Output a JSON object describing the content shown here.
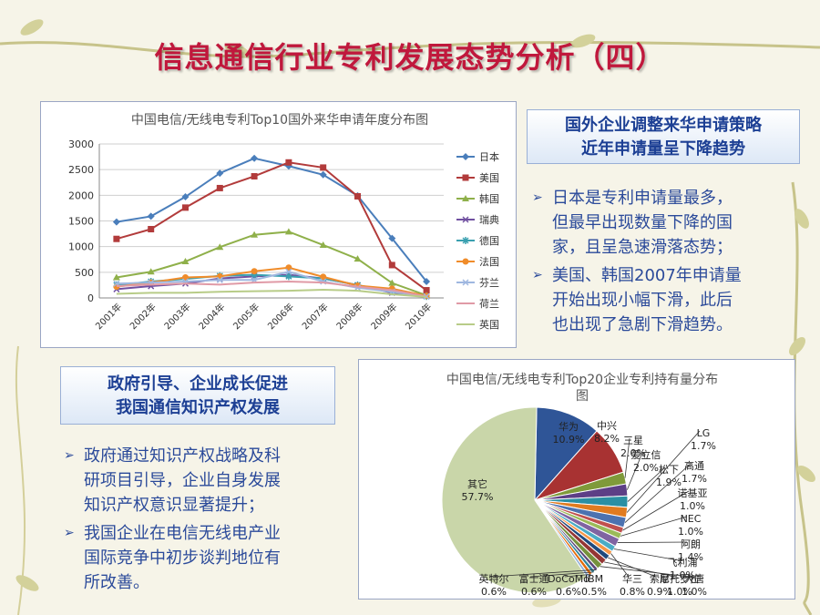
{
  "slide": {
    "title": "信息通信行业专利发展态势分析（四）"
  },
  "line_chart": {
    "title": "中国电信/无线电专利Top10国外来华申请年度分布图",
    "y_ticks": [
      "3000",
      "2500",
      "2000",
      "1500",
      "1000",
      "500",
      "0"
    ]
  },
  "pie_chart": {
    "title_line1": "中国电信/无线电专利Top20企业专利持有量分布",
    "title_line2": "图"
  },
  "right_box": {
    "line1": "国外企业调整来华申请策略",
    "line2": "近年申请量呈下降趋势",
    "bullets": [
      [
        "日本是专利申请量最多，",
        "但最早出现数量下降的国",
        "家，且呈急速滑落态势；"
      ],
      [
        "美国、韩国2007年申请量",
        "开始出现小幅下滑，此后",
        "也出现了急剧下滑趋势。"
      ]
    ]
  },
  "left_box": {
    "line1": "政府引导、企业成长促进",
    "line2": "我国通信知识产权发展",
    "bullets": [
      [
        "政府通过知识产权战略及科",
        "研项目引导，企业自身发展",
        "知识产权意识显著提升；"
      ],
      [
        "我国企业在电信无线电产业",
        "国际竞争中初步谈判地位有",
        "所改善。"
      ]
    ]
  },
  "chart_data": [
    {
      "type": "line",
      "title": "中国电信/无线电专利Top10国外来华申请年度分布图",
      "x": [
        "2001年",
        "2002年",
        "2003年",
        "2004年",
        "2005年",
        "2006年",
        "2007年",
        "2008年",
        "2009年",
        "2010年"
      ],
      "ylim": [
        0,
        3000
      ],
      "grid": true,
      "legend": "right",
      "series": [
        {
          "name": "日本",
          "color": "#4a7ebb",
          "marker": "diamond",
          "values": [
            1480,
            1590,
            1970,
            2430,
            2720,
            2570,
            2400,
            1990,
            1160,
            320
          ]
        },
        {
          "name": "美国",
          "color": "#b23b3b",
          "marker": "square",
          "values": [
            1150,
            1340,
            1760,
            2140,
            2370,
            2640,
            2540,
            1980,
            640,
            150
          ]
        },
        {
          "name": "韩国",
          "color": "#8fb04a",
          "marker": "triangle",
          "values": [
            400,
            510,
            710,
            990,
            1230,
            1290,
            1030,
            760,
            290,
            50
          ]
        },
        {
          "name": "瑞典",
          "color": "#7050a0",
          "marker": "x",
          "values": [
            170,
            230,
            280,
            380,
            420,
            450,
            380,
            250,
            100,
            30
          ]
        },
        {
          "name": "德国",
          "color": "#3aa0b0",
          "marker": "star",
          "values": [
            250,
            320,
            370,
            430,
            450,
            420,
            380,
            250,
            120,
            30
          ]
        },
        {
          "name": "法国",
          "color": "#f08c2a",
          "marker": "circle",
          "values": [
            220,
            300,
            400,
            420,
            520,
            590,
            410,
            240,
            180,
            40
          ]
        },
        {
          "name": "芬兰",
          "color": "#9fb7e0",
          "marker": "x",
          "values": [
            280,
            300,
            320,
            350,
            350,
            510,
            320,
            200,
            120,
            30
          ]
        },
        {
          "name": "荷兰",
          "color": "#e09aa6",
          "marker": "none",
          "values": [
            230,
            260,
            280,
            260,
            300,
            320,
            300,
            220,
            150,
            30
          ]
        },
        {
          "name": "英国",
          "color": "#b8cc88",
          "marker": "none",
          "values": [
            80,
            100,
            100,
            120,
            130,
            140,
            160,
            140,
            70,
            20
          ]
        }
      ]
    },
    {
      "type": "pie",
      "title": "中国电信/无线电专利Top20企业专利持有量分布图",
      "slices": [
        {
          "label": "华为",
          "value": 10.9,
          "display": "10.9%",
          "color": "#2f5597"
        },
        {
          "label": "中兴",
          "value": 8.2,
          "display": "8.2%",
          "color": "#a83232"
        },
        {
          "label": "三星",
          "value": 2.0,
          "display": "2.0%",
          "color": "#7f9a3a"
        },
        {
          "label": "爱立信",
          "value": 2.0,
          "display": "2.0%",
          "color": "#5d3f86"
        },
        {
          "label": "松下",
          "value": 1.9,
          "display": "1.9%",
          "color": "#2b8fa3"
        },
        {
          "label": "LG",
          "value": 1.7,
          "display": "1.7%",
          "color": "#e07b20"
        },
        {
          "label": "高通",
          "value": 1.7,
          "display": "1.7%",
          "color": "#4c72b0"
        },
        {
          "label": "诺基亚",
          "value": 1.0,
          "display": "1.0%",
          "color": "#c0504d"
        },
        {
          "label": "NEC",
          "value": 1.0,
          "display": "1.0%",
          "color": "#9bbb59"
        },
        {
          "label": "阿朗",
          "value": 1.4,
          "display": "1.4%",
          "color": "#8064a2"
        },
        {
          "label": "飞利浦",
          "value": 1.0,
          "display": "1.0%",
          "color": "#4bacc6"
        },
        {
          "label": "华三",
          "value": 0.8,
          "display": "0.8%",
          "color": "#f79646"
        },
        {
          "label": "索尼",
          "value": 0.9,
          "display": "0.9%",
          "color": "#1f497d"
        },
        {
          "label": "摩托罗拉",
          "value": 1.0,
          "display": "1.0%",
          "color": "#943634"
        },
        {
          "label": "大唐",
          "value": 1.0,
          "display": "1.0%",
          "color": "#76923c"
        },
        {
          "label": "英特尔",
          "value": 0.6,
          "display": "0.6%",
          "color": "#5f497a"
        },
        {
          "label": "富士通",
          "value": 0.6,
          "display": "0.6%",
          "color": "#31859c"
        },
        {
          "label": "DoCoMo",
          "value": 0.6,
          "display": "0.6%",
          "color": "#e46c0a"
        },
        {
          "label": "IBM",
          "value": 0.5,
          "display": "0.5%",
          "color": "#95b3d7"
        },
        {
          "label": "其它",
          "value": 57.7,
          "display": "57.7%",
          "color": "#c9d6a9"
        }
      ]
    }
  ]
}
